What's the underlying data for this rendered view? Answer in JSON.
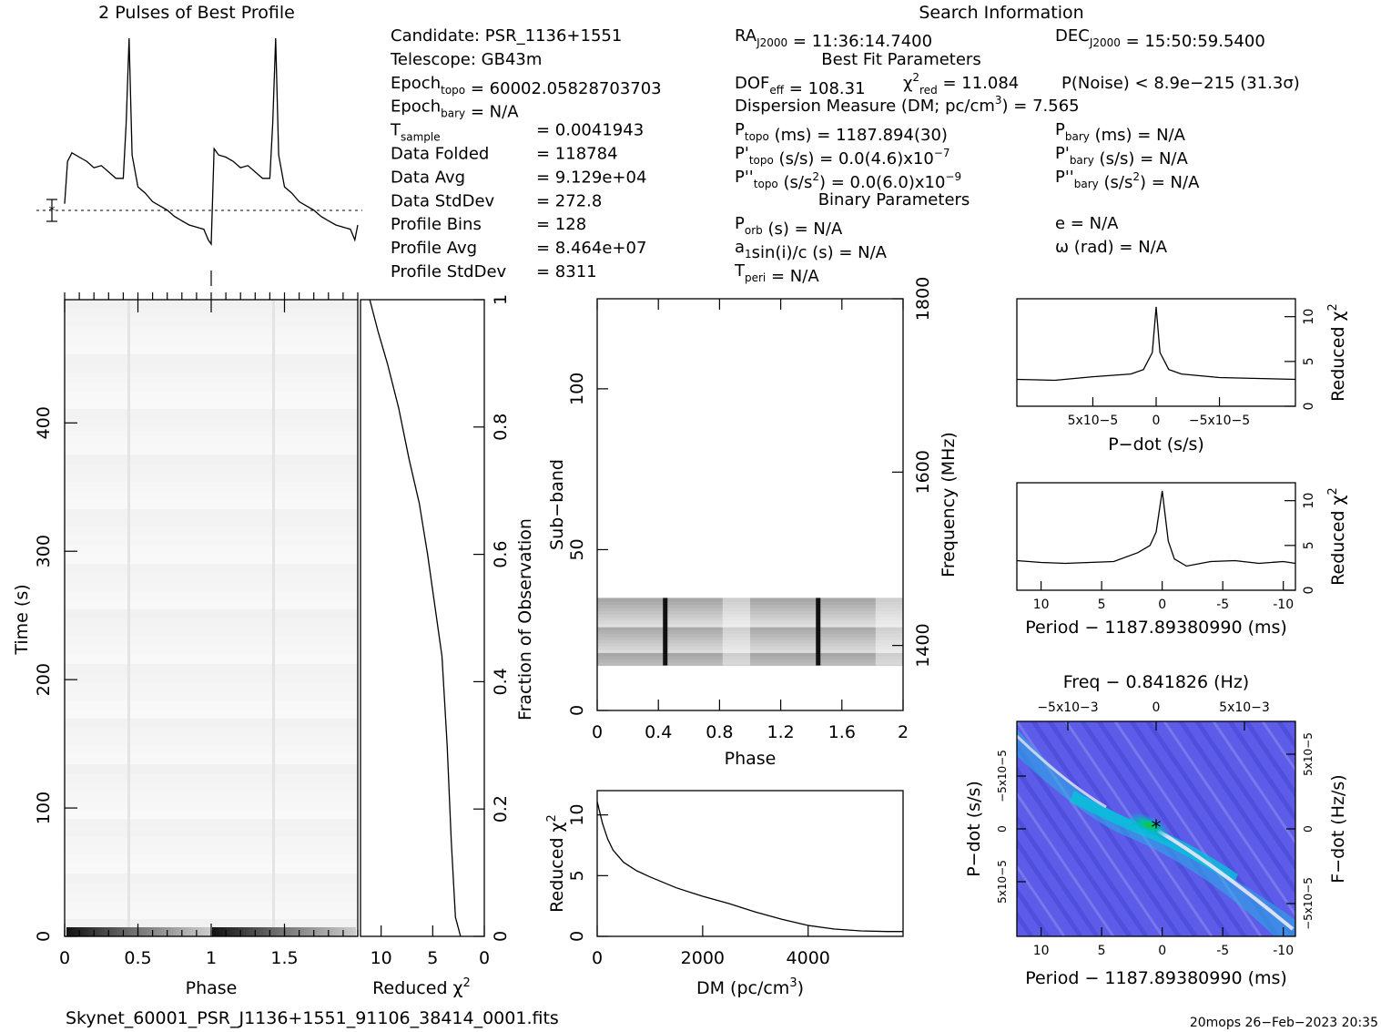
{
  "title": "2 Pulses of Best Profile",
  "search_header": "Search Information",
  "info_left": [
    {
      "k": "Candidate:  PSR_1136+1551"
    },
    {
      "k": "Telescope:  GB43m"
    },
    {
      "k": "Epoch",
      "sub": "topo",
      "v": " = 60002.05828703703"
    },
    {
      "k": "Epoch",
      "sub": "bary",
      "v": " = N/A"
    },
    {
      "k": "T",
      "sub": "sample",
      "eq": "=  0.0041943"
    },
    {
      "k": "Data Folded",
      "eq": "=  118784"
    },
    {
      "k": "Data Avg",
      "eq": "=  9.129e+04"
    },
    {
      "k": "Data StdDev",
      "eq": "=  272.8"
    },
    {
      "k": "Profile Bins",
      "eq": "=  128"
    },
    {
      "k": "Profile Avg",
      "eq": "=  8.464e+07"
    },
    {
      "k": "Profile StdDev",
      "eq": "=  8311"
    }
  ],
  "info_mid": {
    "ra": {
      "k": "RA",
      "sub": "J2000",
      "v": " = 11:36:14.7400"
    },
    "dec": {
      "k": "DEC",
      "sub": "J2000",
      "v": " = 15:50:59.5400"
    },
    "best_fit_header": "Best Fit Parameters",
    "dof": {
      "k": "DOF",
      "sub": "eff",
      "v": " = 108.31"
    },
    "chi": {
      "k": "χ",
      "sup": "2",
      "sub": "red",
      "v": " = 11.084"
    },
    "pnoise": "P(Noise) < 8.9e−215   (31.3σ)",
    "dm": "Dispersion Measure (DM; pc/cm",
    "dm_sup": "3",
    "dm_v": ") = 7.565",
    "ptopo": {
      "k": "P",
      "sub": "topo",
      "v": " (ms) =  1187.894(30)"
    },
    "pdtopo": {
      "k": "P'",
      "sub": "topo",
      "v": " (s/s) = 0.0(4.6)x10",
      "sup": "−7"
    },
    "pddtopo": {
      "k": "P''",
      "sub": "topo",
      "v": " (s/s",
      "sup2": "2",
      "v2": ") = 0.0(6.0)x10",
      "sup": "−9"
    },
    "pbary": {
      "k": "P",
      "sub": "bary",
      "v": " (ms) = N/A"
    },
    "pdbary": {
      "k": "P'",
      "sub": "bary",
      "v": " (s/s) = N/A"
    },
    "pddbary": {
      "k": "P''",
      "sub": "bary",
      "v": " (s/s",
      "sup2": "2",
      "v2": ") = N/A"
    },
    "binary_header": "Binary Parameters",
    "porb": {
      "k": "P",
      "sub": "orb",
      "v": " (s) = N/A"
    },
    "a1": {
      "k": "a",
      "sub": "1",
      "v": "sin(i)/c (s) = N/A"
    },
    "tperi": {
      "k": "T",
      "sub": "peri",
      "v": " = N/A"
    },
    "ecc": "e = N/A",
    "omega": "ω (rad) = N/A"
  },
  "footer_file": "Skynet_60001_PSR_J1136+1551_91106_38414_0001.fits",
  "footer_stamp": "20mops 26−Feb−2023 20:35",
  "axes": {
    "time_label": "Time (s)",
    "phase_label": "Phase",
    "redchi_label": "Reduced χ",
    "redchi_sup": "2",
    "frac_label": "Fraction of Observation",
    "subband_label": "Sub−band",
    "freq_label": "Frequency (MHz)",
    "dm_label": "DM (pc/cm",
    "dm_sup": "3",
    "dm_close": ")",
    "pdot_label": "P−dot (s/s)",
    "period_label": "Period − 1187.89380990 (ms)",
    "freq_top_label": "Freq − 0.841826 (Hz)",
    "fdot_label": "F−dot (Hz/s)"
  },
  "chart_data": [
    {
      "id": "profile",
      "type": "line",
      "title": "2 Pulses of Best Profile",
      "x_range": [
        0,
        2
      ],
      "x": [
        0,
        0.02,
        0.05,
        0.1,
        0.15,
        0.2,
        0.25,
        0.3,
        0.35,
        0.4,
        0.42,
        0.44,
        0.46,
        0.5,
        0.55,
        0.6,
        0.65,
        0.7,
        0.75,
        0.8,
        0.85,
        0.9,
        0.95,
        0.98,
        1.0,
        1.02,
        1.05,
        1.1,
        1.15,
        1.2,
        1.25,
        1.3,
        1.35,
        1.4,
        1.42,
        1.44,
        1.46,
        1.5,
        1.55,
        1.6,
        1.65,
        1.7,
        1.75,
        1.8,
        1.85,
        1.9,
        1.95,
        1.98,
        2.0
      ],
      "y": [
        0.22,
        0.42,
        0.46,
        0.44,
        0.42,
        0.39,
        0.4,
        0.37,
        0.34,
        0.34,
        0.6,
        1.0,
        0.45,
        0.3,
        0.27,
        0.23,
        0.21,
        0.19,
        0.16,
        0.14,
        0.12,
        0.11,
        0.1,
        0.05,
        0.03,
        0.48,
        0.45,
        0.44,
        0.42,
        0.39,
        0.4,
        0.37,
        0.34,
        0.34,
        0.6,
        1.0,
        0.45,
        0.3,
        0.27,
        0.23,
        0.21,
        0.19,
        0.16,
        0.14,
        0.12,
        0.11,
        0.1,
        0.05,
        0.12
      ]
    },
    {
      "id": "phase_time",
      "type": "heatmap",
      "xlabel": "Phase",
      "ylabel": "Time (s)",
      "xlim": [
        0,
        2
      ],
      "ylim": [
        0,
        496
      ],
      "x_ticks": [
        0,
        0.5,
        1,
        1.5
      ],
      "y_ticks": [
        0,
        100,
        200,
        300,
        400
      ]
    },
    {
      "id": "time_redchi",
      "type": "line",
      "xlabel": "Reduced χ2",
      "ylabel": "Fraction of Observation",
      "x_ticks": [
        10,
        5,
        0
      ],
      "y_ticks": [
        0,
        0.2,
        0.4,
        0.6,
        0.8,
        1
      ],
      "x_range": [
        12,
        0
      ],
      "redchi": [
        11.1,
        10.3,
        9.4,
        8.3,
        7.3,
        6.3,
        5.5,
        4.8,
        4.1,
        3.6,
        3.2,
        2.8,
        2.3
      ],
      "fraction": [
        1.0,
        0.95,
        0.9,
        0.83,
        0.75,
        0.68,
        0.6,
        0.52,
        0.44,
        0.3,
        0.15,
        0.03,
        0.0
      ]
    },
    {
      "id": "subband_phase",
      "type": "heatmap",
      "xlabel": "Phase",
      "ylabel": "Sub−band",
      "y2label": "Frequency (MHz)",
      "xlim": [
        0,
        2
      ],
      "ylim": [
        0,
        128
      ],
      "x_ticks": [
        0,
        0.4,
        0.8,
        1.2,
        1.6,
        2
      ],
      "y_ticks": [
        0,
        50,
        100
      ],
      "y2_ticks": [
        1400,
        1600,
        1800
      ],
      "occupied_subbands": [
        14,
        35
      ]
    },
    {
      "id": "dm_curve",
      "type": "line",
      "xlabel": "DM (pc/cm3)",
      "ylabel": "Reduced χ2",
      "xlim": [
        0,
        5800
      ],
      "ylim": [
        0,
        12
      ],
      "x_ticks": [
        0,
        2000,
        4000
      ],
      "y_ticks": [
        0,
        5,
        10
      ],
      "x": [
        0,
        100,
        200,
        300,
        500,
        750,
        1000,
        1500,
        2000,
        2500,
        3000,
        3500,
        4000,
        4500,
        5000,
        5500,
        5800
      ],
      "y": [
        11.1,
        9.3,
        8.0,
        7.1,
        6.1,
        5.4,
        4.9,
        4.0,
        3.3,
        2.7,
        2.0,
        1.4,
        0.9,
        0.6,
        0.45,
        0.4,
        0.4
      ]
    },
    {
      "id": "pdot_curve",
      "type": "line",
      "xlabel": "P−dot (s/s)",
      "ylabel": "Reduced χ2",
      "xlim": [
        0.00011,
        -0.00011
      ],
      "ylim": [
        0,
        12
      ],
      "x_tick_labels": [
        "5x10−5",
        "0",
        "−5x10−5"
      ],
      "y_ticks": [
        0,
        5,
        10
      ],
      "x": [
        0.00011,
        8e-05,
        5e-05,
        2e-05,
        1e-05,
        3e-06,
        0,
        -3e-06,
        -1e-05,
        -2e-05,
        -5e-05,
        -8e-05,
        -0.00011
      ],
      "y": [
        3.0,
        2.9,
        3.3,
        3.6,
        4.1,
        6.0,
        11.1,
        6.0,
        4.1,
        3.6,
        3.2,
        3.1,
        3.0
      ]
    },
    {
      "id": "period_curve",
      "type": "line",
      "xlabel": "Period − 1187.89380990 (ms)",
      "ylabel": "Reduced χ2",
      "xlim": [
        12,
        -11
      ],
      "ylim": [
        0,
        12
      ],
      "x_ticks": [
        10,
        5,
        0,
        -5,
        -10
      ],
      "y_ticks": [
        0,
        5,
        10
      ],
      "x": [
        12,
        10,
        8,
        6,
        4,
        2,
        1,
        0.5,
        0,
        -0.5,
        -1,
        -2,
        -4,
        -6,
        -8,
        -10,
        -11
      ],
      "y": [
        3.3,
        3.1,
        3.0,
        3.1,
        3.2,
        4.2,
        5.0,
        6.5,
        11.1,
        5.5,
        3.5,
        2.7,
        3.2,
        3.3,
        3.0,
        3.2,
        3.0
      ]
    },
    {
      "id": "period_pdot_plane",
      "type": "heatmap",
      "xlabel": "Period − 1187.89380990 (ms)",
      "ylabel": "P−dot (s/s)",
      "top_label": "Freq − 0.841826 (Hz)",
      "right_label": "F−dot (Hz/s)",
      "x_ticks": [
        10,
        5,
        0,
        -5,
        -10
      ],
      "top_tick_labels": [
        "−5x10−3",
        "0",
        "5x10−3"
      ],
      "y_tick_labels": [
        "−5x10−5",
        "0",
        "5x10−5"
      ],
      "right_tick_labels": [
        "5x10−5",
        "0",
        "−5x10−5"
      ],
      "best_fit_marker": [
        0,
        0
      ],
      "colors": {
        "background": "#5a5ae6",
        "ridge": "#00c8d8",
        "peak": "#19c819",
        "ridge_light": "#e8e4f6"
      }
    }
  ]
}
